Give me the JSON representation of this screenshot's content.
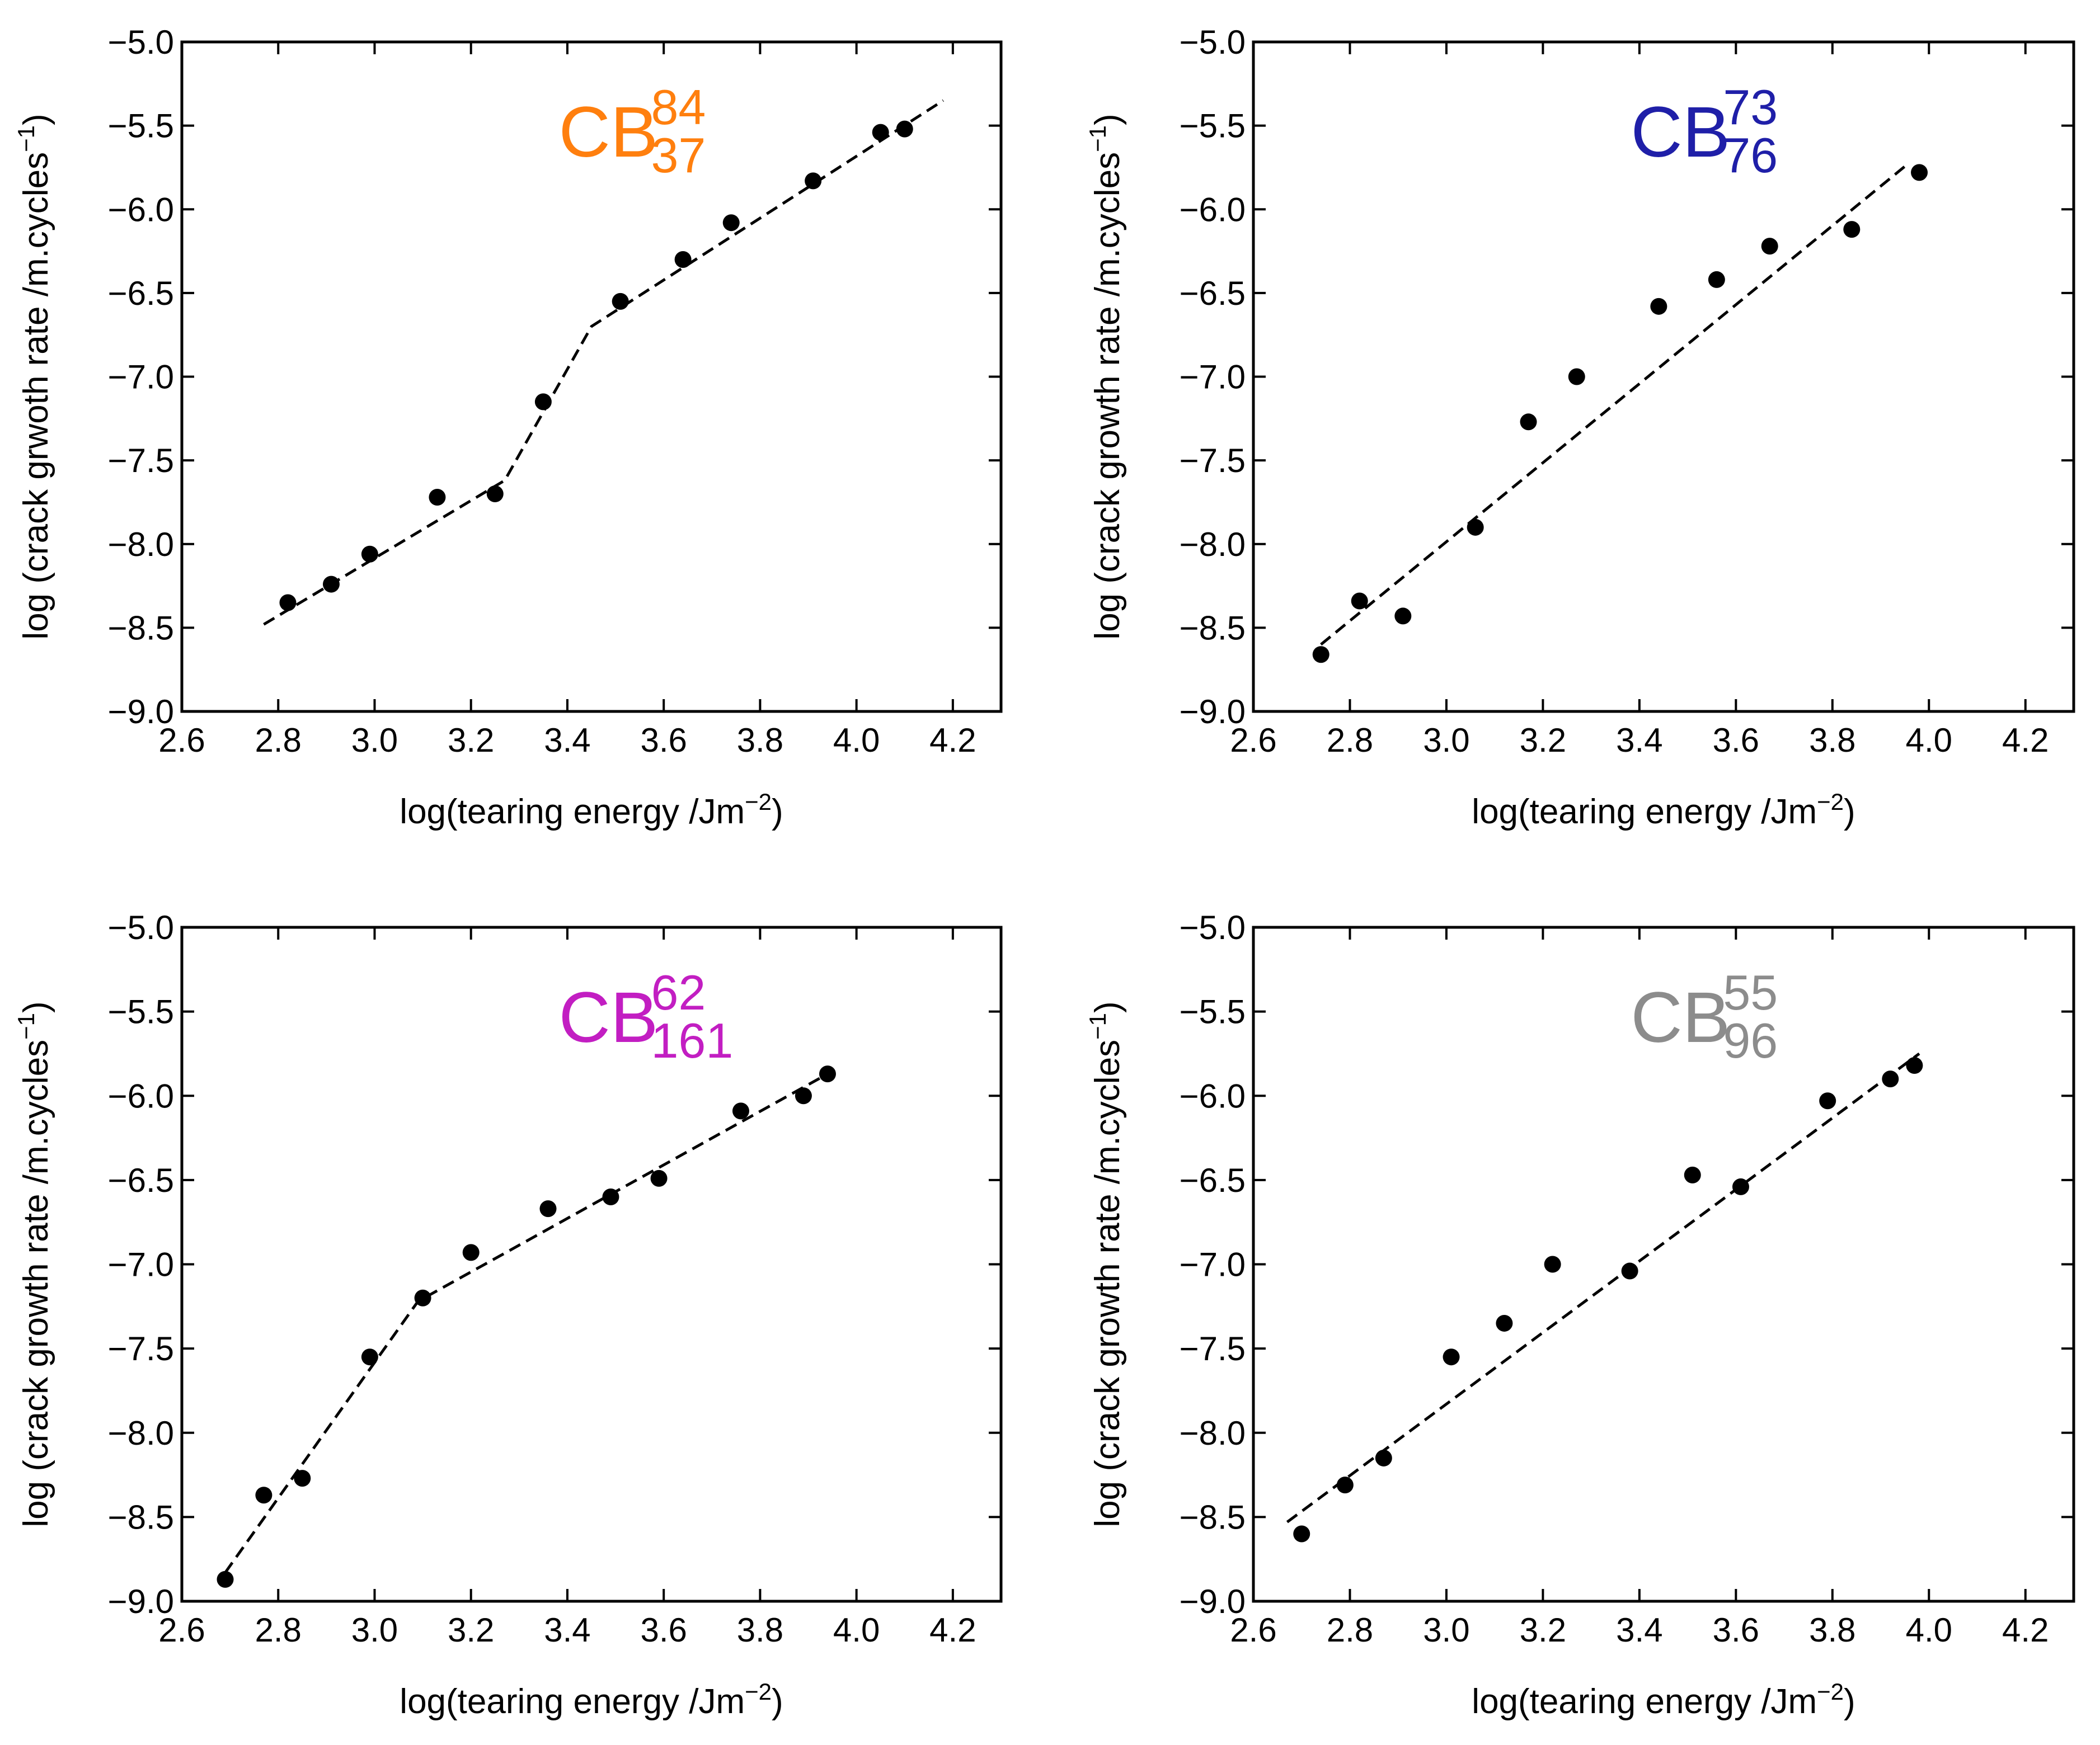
{
  "chart_data": [
    {
      "type": "scatter",
      "id": "cb84-37",
      "label": {
        "base": "CB",
        "sup": "84",
        "sub": "37",
        "color": "#ff7f0e"
      },
      "xlabel": "log(tearing energy /Jm",
      "xlabel_sup": "−2",
      "xlabel_tail": ")",
      "ylabel": "log (crack grwoth rate /m.cycles",
      "ylabel_sup": "−1",
      "ylabel_tail": ")",
      "xlim": [
        2.6,
        4.3
      ],
      "ylim": [
        -9.0,
        -5.0
      ],
      "xticks": [
        "2.6",
        "2.8",
        "3.0",
        "3.2",
        "3.4",
        "3.6",
        "3.8",
        "4.0",
        "4.2"
      ],
      "yticks": [
        "−5.0",
        "−5.5",
        "−6.0",
        "−6.5",
        "−7.0",
        "−7.5",
        "−8.0",
        "−8.5",
        "−9.0"
      ],
      "points": [
        [
          2.82,
          -8.35
        ],
        [
          2.91,
          -8.24
        ],
        [
          2.99,
          -8.06
        ],
        [
          3.13,
          -7.72
        ],
        [
          3.25,
          -7.7
        ],
        [
          3.35,
          -7.15
        ],
        [
          3.51,
          -6.55
        ],
        [
          3.64,
          -6.3
        ],
        [
          3.74,
          -6.08
        ],
        [
          3.91,
          -5.83
        ],
        [
          4.05,
          -5.54
        ],
        [
          4.1,
          -5.52
        ]
      ],
      "fit": [
        [
          2.77,
          -8.48
        ],
        [
          3.27,
          -7.62
        ],
        [
          3.45,
          -6.7
        ],
        [
          4.18,
          -5.35
        ]
      ]
    },
    {
      "type": "scatter",
      "id": "cb73-76",
      "label": {
        "base": "CB",
        "sup": "73",
        "sub": "76",
        "color": "#1f1fa8"
      },
      "xlabel": "log(tearing energy /Jm",
      "xlabel_sup": "−2",
      "xlabel_tail": ")",
      "ylabel": "log (crack growth rate /m.cycles",
      "ylabel_sup": "−1",
      "ylabel_tail": ")",
      "xlim": [
        2.6,
        4.3
      ],
      "ylim": [
        -9.0,
        -5.0
      ],
      "xticks": [
        "2.6",
        "2.8",
        "3.0",
        "3.2",
        "3.4",
        "3.6",
        "3.8",
        "4.0",
        "4.2"
      ],
      "yticks": [
        "−5.0",
        "−5.5",
        "−6.0",
        "−6.5",
        "−7.0",
        "−7.5",
        "−8.0",
        "−8.5",
        "−9.0"
      ],
      "points": [
        [
          2.74,
          -8.66
        ],
        [
          2.82,
          -8.34
        ],
        [
          2.91,
          -8.43
        ],
        [
          3.06,
          -7.9
        ],
        [
          3.17,
          -7.27
        ],
        [
          3.27,
          -7.0
        ],
        [
          3.44,
          -6.58
        ],
        [
          3.56,
          -6.42
        ],
        [
          3.67,
          -6.22
        ],
        [
          3.84,
          -6.12
        ],
        [
          3.98,
          -5.78
        ]
      ],
      "fit": [
        [
          2.74,
          -8.6
        ],
        [
          3.96,
          -5.72
        ]
      ]
    },
    {
      "type": "scatter",
      "id": "cb62-161",
      "label": {
        "base": "CB",
        "sup": "62",
        "sub": "161",
        "color": "#c21ec2"
      },
      "xlabel": "log(tearing energy /Jm",
      "xlabel_sup": "−2",
      "xlabel_tail": ")",
      "ylabel": "log (crack growth rate /m.cycles",
      "ylabel_sup": "−1",
      "ylabel_tail": ")",
      "xlim": [
        2.6,
        4.3
      ],
      "ylim": [
        -9.0,
        -5.0
      ],
      "xticks": [
        "2.6",
        "2.8",
        "3.0",
        "3.2",
        "3.4",
        "3.6",
        "3.8",
        "4.0",
        "4.2"
      ],
      "yticks": [
        "−5.0",
        "−5.5",
        "−6.0",
        "−6.5",
        "−7.0",
        "−7.5",
        "−8.0",
        "−8.5",
        "−9.0"
      ],
      "points": [
        [
          2.69,
          -8.87
        ],
        [
          2.77,
          -8.37
        ],
        [
          2.85,
          -8.27
        ],
        [
          2.99,
          -7.55
        ],
        [
          3.1,
          -7.2
        ],
        [
          3.2,
          -6.93
        ],
        [
          3.36,
          -6.67
        ],
        [
          3.49,
          -6.6
        ],
        [
          3.59,
          -6.49
        ],
        [
          3.76,
          -6.09
        ],
        [
          3.89,
          -6.0
        ],
        [
          3.94,
          -5.87
        ]
      ],
      "fit": [
        [
          2.69,
          -8.83
        ],
        [
          3.09,
          -7.22
        ],
        [
          3.94,
          -5.87
        ]
      ]
    },
    {
      "type": "scatter",
      "id": "cb55-96",
      "label": {
        "base": "CB",
        "sup": "55",
        "sub": "96",
        "color": "#8c8c8c"
      },
      "xlabel": "log(tearing energy /Jm",
      "xlabel_sup": "−2",
      "xlabel_tail": ")",
      "ylabel": "log (crack growth rate /m.cycles",
      "ylabel_sup": "−1",
      "ylabel_tail": ")",
      "xlim": [
        2.6,
        4.3
      ],
      "ylim": [
        -9.0,
        -5.0
      ],
      "xticks": [
        "2.6",
        "2.8",
        "3.0",
        "3.2",
        "3.4",
        "3.6",
        "3.8",
        "4.0",
        "4.2"
      ],
      "yticks": [
        "−5.0",
        "−5.5",
        "−6.0",
        "−6.5",
        "−7.0",
        "−7.5",
        "−8.0",
        "−8.5",
        "−9.0"
      ],
      "points": [
        [
          2.7,
          -8.6
        ],
        [
          2.79,
          -8.31
        ],
        [
          2.87,
          -8.15
        ],
        [
          3.01,
          -7.55
        ],
        [
          3.12,
          -7.35
        ],
        [
          3.22,
          -7.0
        ],
        [
          3.38,
          -7.04
        ],
        [
          3.51,
          -6.47
        ],
        [
          3.61,
          -6.54
        ],
        [
          3.79,
          -6.03
        ],
        [
          3.92,
          -5.9
        ],
        [
          3.97,
          -5.82
        ]
      ],
      "fit": [
        [
          2.67,
          -8.53
        ],
        [
          3.98,
          -5.75
        ]
      ]
    }
  ]
}
